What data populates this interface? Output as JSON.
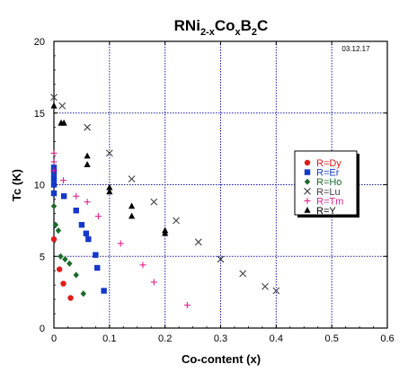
{
  "chart_data": {
    "type": "scatter",
    "title": {
      "base": "RNi",
      "s1": "2-x",
      "m1": "Co",
      "s2": "x",
      "m2": "B",
      "s3": "2",
      "m3": "C"
    },
    "date_stamp": "03.12.17",
    "xlabel": "Co-content (x)",
    "ylabel": "Tc (K)",
    "xlim": [
      0,
      0.6
    ],
    "ylim": [
      0,
      20
    ],
    "x_ticks": [
      "0",
      "0.1",
      "0.2",
      "0.3",
      "0.4",
      "0.5",
      "0.6"
    ],
    "y_ticks": [
      "0",
      "5",
      "10",
      "15",
      "20"
    ],
    "grid": true,
    "legend_position": "right",
    "series": [
      {
        "name": "R=Dy",
        "marker": "circle",
        "color": "#e11b1b",
        "points": [
          [
            0.0,
            6.2
          ],
          [
            0.01,
            4.1
          ],
          [
            0.017,
            3.1
          ],
          [
            0.03,
            2.1
          ]
        ]
      },
      {
        "name": "R=Er",
        "marker": "square",
        "color": "#1438c8",
        "points": [
          [
            0.0,
            11.2
          ],
          [
            0.0,
            10.8
          ],
          [
            0.0,
            10.4
          ],
          [
            0.0,
            10.0
          ],
          [
            0.0,
            9.4
          ],
          [
            0.018,
            9.2
          ],
          [
            0.04,
            8.2
          ],
          [
            0.05,
            7.2
          ],
          [
            0.058,
            6.6
          ],
          [
            0.062,
            6.2
          ],
          [
            0.075,
            5.1
          ],
          [
            0.078,
            4.2
          ],
          [
            0.09,
            2.6
          ]
        ]
      },
      {
        "name": "R=Ho",
        "marker": "diamond",
        "color": "#1c6b2a",
        "points": [
          [
            0.0,
            8.5
          ],
          [
            0.003,
            7.2
          ],
          [
            0.008,
            6.8
          ],
          [
            0.012,
            5.0
          ],
          [
            0.02,
            4.8
          ],
          [
            0.028,
            4.5
          ],
          [
            0.04,
            3.7
          ],
          [
            0.053,
            2.4
          ]
        ]
      },
      {
        "name": "R=Lu",
        "marker": "x",
        "color": "#404040",
        "points": [
          [
            0.0,
            16.1
          ],
          [
            0.015,
            15.5
          ],
          [
            0.06,
            14.0
          ],
          [
            0.1,
            12.2
          ],
          [
            0.14,
            10.4
          ],
          [
            0.18,
            8.8
          ],
          [
            0.22,
            7.5
          ],
          [
            0.26,
            6.0
          ],
          [
            0.3,
            4.8
          ],
          [
            0.34,
            3.8
          ],
          [
            0.38,
            2.9
          ],
          [
            0.4,
            2.6
          ]
        ]
      },
      {
        "name": "R=Tm",
        "marker": "plus",
        "color": "#e0208c",
        "points": [
          [
            0.0,
            12.2
          ],
          [
            0.0,
            11.6
          ],
          [
            0.0,
            11.0
          ],
          [
            0.017,
            10.3
          ],
          [
            0.04,
            9.2
          ],
          [
            0.06,
            8.8
          ],
          [
            0.08,
            7.8
          ],
          [
            0.12,
            5.9
          ],
          [
            0.16,
            4.4
          ],
          [
            0.18,
            3.2
          ],
          [
            0.24,
            1.6
          ]
        ]
      },
      {
        "name": "R=Y",
        "marker": "triangle",
        "color": "#000000",
        "points": [
          [
            0.0,
            15.5
          ],
          [
            0.013,
            14.3
          ],
          [
            0.018,
            14.3
          ],
          [
            0.06,
            12.0
          ],
          [
            0.06,
            11.4
          ],
          [
            0.1,
            9.8
          ],
          [
            0.1,
            9.5
          ],
          [
            0.14,
            8.5
          ],
          [
            0.14,
            7.8
          ],
          [
            0.2,
            6.8
          ],
          [
            0.2,
            6.6
          ]
        ]
      }
    ]
  }
}
